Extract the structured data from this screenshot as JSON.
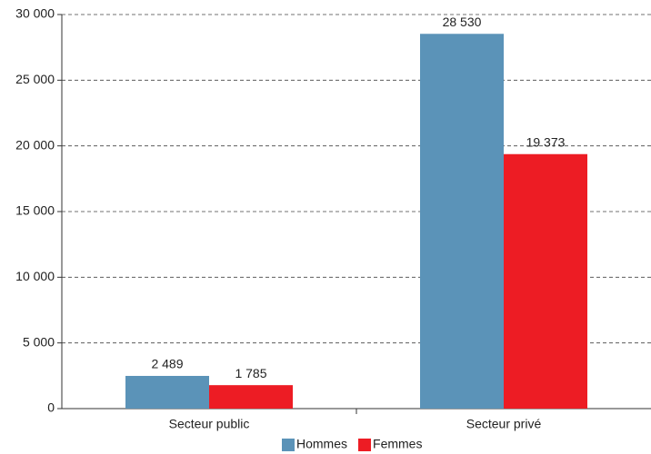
{
  "chart_data": {
    "type": "bar",
    "categories": [
      "Secteur public",
      "Secteur privé"
    ],
    "series": [
      {
        "name": "Hommes",
        "color": "#5b93b8",
        "values": [
          2489,
          28530
        ],
        "value_labels": [
          "2 489",
          "28 530"
        ]
      },
      {
        "name": "Femmes",
        "color": "#ed1c24",
        "values": [
          1785,
          19373
        ],
        "value_labels": [
          "1 785",
          "19 373"
        ]
      }
    ],
    "ylim": [
      0,
      30000
    ],
    "yticks": [
      0,
      {
        "value": 5000,
        "label": "5 000"
      },
      {
        "value": 10000,
        "label": "10 000"
      },
      {
        "value": 15000,
        "label": "15 000"
      },
      {
        "value": 20000,
        "label": "20 000"
      },
      {
        "value": 25000,
        "label": "25 000"
      },
      {
        "value": 30000,
        "label": "30 000"
      }
    ],
    "grid": true,
    "legend": "bottom"
  }
}
